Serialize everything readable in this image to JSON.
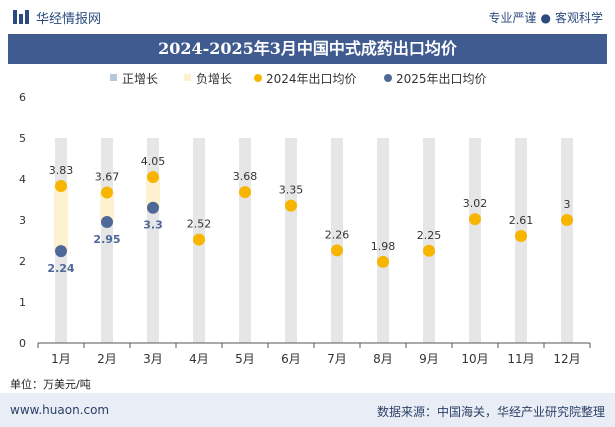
{
  "header": {
    "brand": "华经情报网",
    "tag_left": "专业严谨",
    "tag_right": "客观科学"
  },
  "chart_data": {
    "type": "bar",
    "title": "2024-2025年3月中国中式成药出口均价",
    "categories": [
      "1月",
      "2月",
      "3月",
      "4月",
      "5月",
      "6月",
      "7月",
      "8月",
      "9月",
      "10月",
      "11月",
      "12月"
    ],
    "series": [
      {
        "name": "2024年出口均价",
        "type": "scatter",
        "values": [
          3.83,
          3.67,
          4.05,
          2.52,
          3.68,
          3.35,
          2.26,
          1.98,
          2.25,
          3.02,
          2.61,
          3
        ],
        "color": "#f7b500"
      },
      {
        "name": "2025年出口均价",
        "type": "scatter",
        "values": [
          2.24,
          2.95,
          3.3,
          null,
          null,
          null,
          null,
          null,
          null,
          null,
          null,
          null
        ],
        "color": "#4e6898"
      }
    ],
    "legend": [
      {
        "name": "正增长",
        "color": "#b9c7da"
      },
      {
        "name": "负增长",
        "color": "#fdf1cf"
      },
      {
        "name": "2024年出口均价",
        "color": "#f7b500"
      },
      {
        "name": "2025年出口均价",
        "color": "#4e6898"
      }
    ],
    "negative_growth_color": "#fdf1cf",
    "background_bar_color": "#e6e6e6",
    "ylim": [
      0,
      6
    ],
    "yticks": [
      0,
      1,
      2,
      3,
      4,
      5,
      6
    ],
    "legend_position": "top",
    "grid": false
  },
  "footer": {
    "unit": "单位：万美元/吨",
    "site": "www.huaon.com",
    "source": "数据来源：中国海关，华经产业研究院整理"
  }
}
